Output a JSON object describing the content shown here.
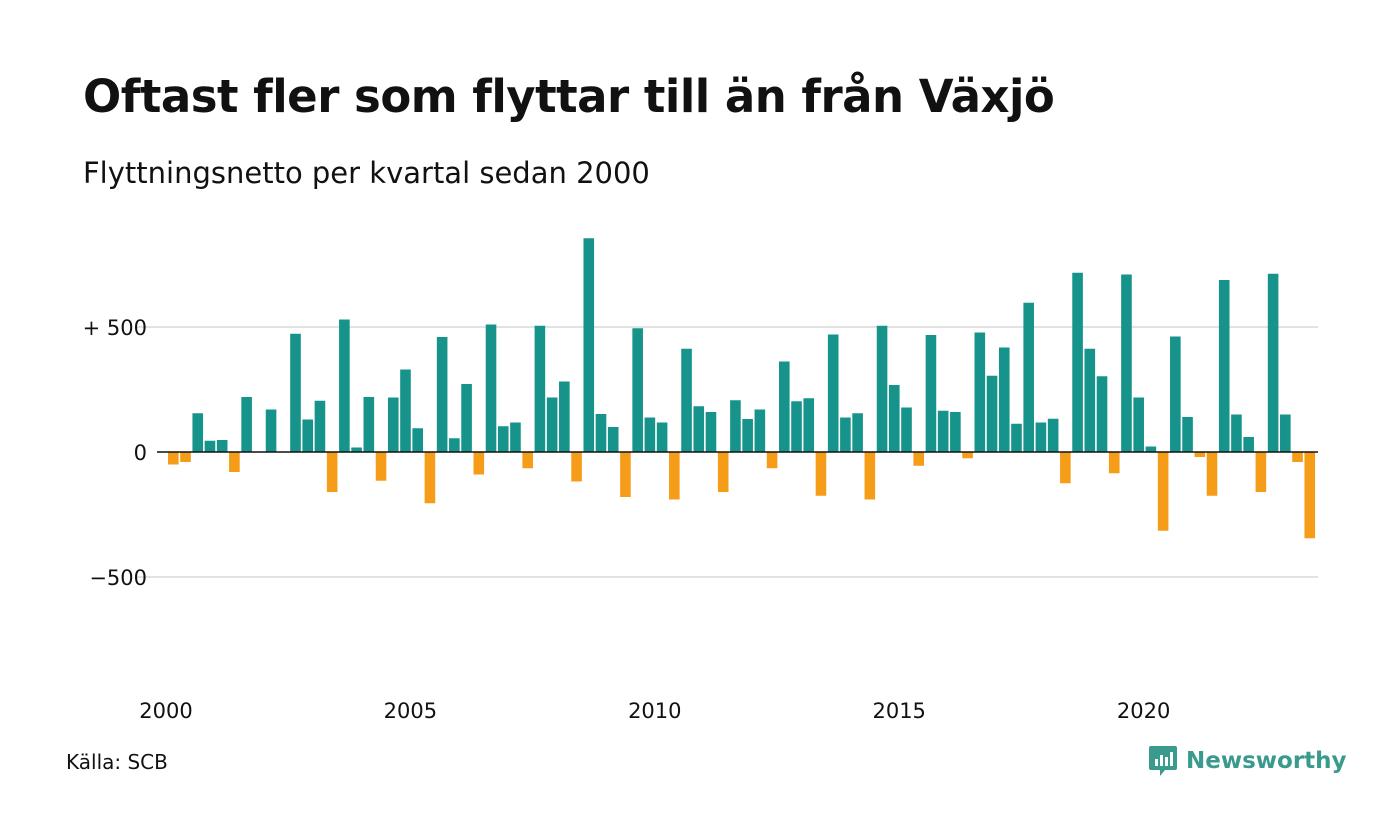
{
  "title": "Oftast fler som flyttar till än från Växjö",
  "subtitle": "Flyttningsnetto per kvartal sedan 2000",
  "source": "Källa: SCB",
  "brand": {
    "name": "Newsworthy",
    "icon": "newsworthy-logo-icon",
    "color": "#3a9a8d"
  },
  "colors": {
    "positive": "#16938a",
    "negative": "#f59d18",
    "gridline": "#e2e2e2",
    "baseline": "#111111"
  },
  "chart_data": {
    "type": "bar",
    "title": "Oftast fler som flyttar till än från Växjö",
    "subtitle": "Flyttningsnetto per kvartal sedan 2000",
    "x_start_year": 2000,
    "x_start_quarter": 1,
    "x_ticks": [
      "2000",
      "2005",
      "2010",
      "2015",
      "2020"
    ],
    "y_ticks": [
      {
        "value": 500,
        "label": "+ 500"
      },
      {
        "value": 0,
        "label": "0"
      },
      {
        "value": -500,
        "label": "−500"
      }
    ],
    "ylim": [
      -850,
      900
    ],
    "grid": true,
    "values": [
      -50,
      -40,
      155,
      45,
      48,
      -80,
      220,
      0,
      170,
      0,
      473,
      130,
      205,
      -160,
      530,
      18,
      220,
      -115,
      218,
      330,
      95,
      -205,
      460,
      55,
      272,
      -90,
      510,
      103,
      118,
      -65,
      505,
      218,
      282,
      -118,
      855,
      152,
      100,
      -180,
      495,
      138,
      118,
      -190,
      413,
      183,
      160,
      -160,
      207,
      132,
      170,
      -65,
      362,
      203,
      215,
      -175,
      470,
      138,
      155,
      -190,
      505,
      268,
      178,
      -55,
      468,
      165,
      160,
      -25,
      478,
      305,
      418,
      113,
      597,
      118,
      133,
      -125,
      717,
      413,
      303,
      -85,
      710,
      218,
      22,
      -315,
      462,
      140,
      -20,
      -175,
      688,
      150,
      60,
      -160,
      713,
      150,
      -40,
      -345
    ]
  }
}
